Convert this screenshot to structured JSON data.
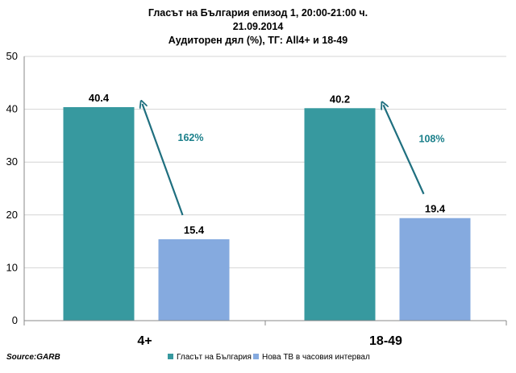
{
  "chart_data": {
    "type": "bar",
    "title": [
      "Гласът на България епизод 1, 20:00-21:00 ч.",
      "21.09.2014",
      "Аудиторен дял (%), ТГ: All4+ и 18-49"
    ],
    "categories": [
      "4+",
      "18-49"
    ],
    "series": [
      {
        "name": "Гласът на България",
        "values": [
          40.4,
          40.2
        ],
        "color": "#37999f"
      },
      {
        "name": "Нова ТВ в часовия интервал",
        "values": [
          15.4,
          19.4
        ],
        "color": "#85aadf"
      }
    ],
    "ylim": [
      0,
      50
    ],
    "yticks": [
      0,
      10,
      20,
      30,
      40,
      50
    ],
    "grid": true,
    "legend": "bottom-right",
    "annotations": [
      {
        "text": "162%",
        "category": "4+"
      },
      {
        "text": "108%",
        "category": "18-49"
      }
    ],
    "annotation_color": "#1a7f8a",
    "arrow_color": "#1f6f7f",
    "source": "Source:GARB"
  }
}
